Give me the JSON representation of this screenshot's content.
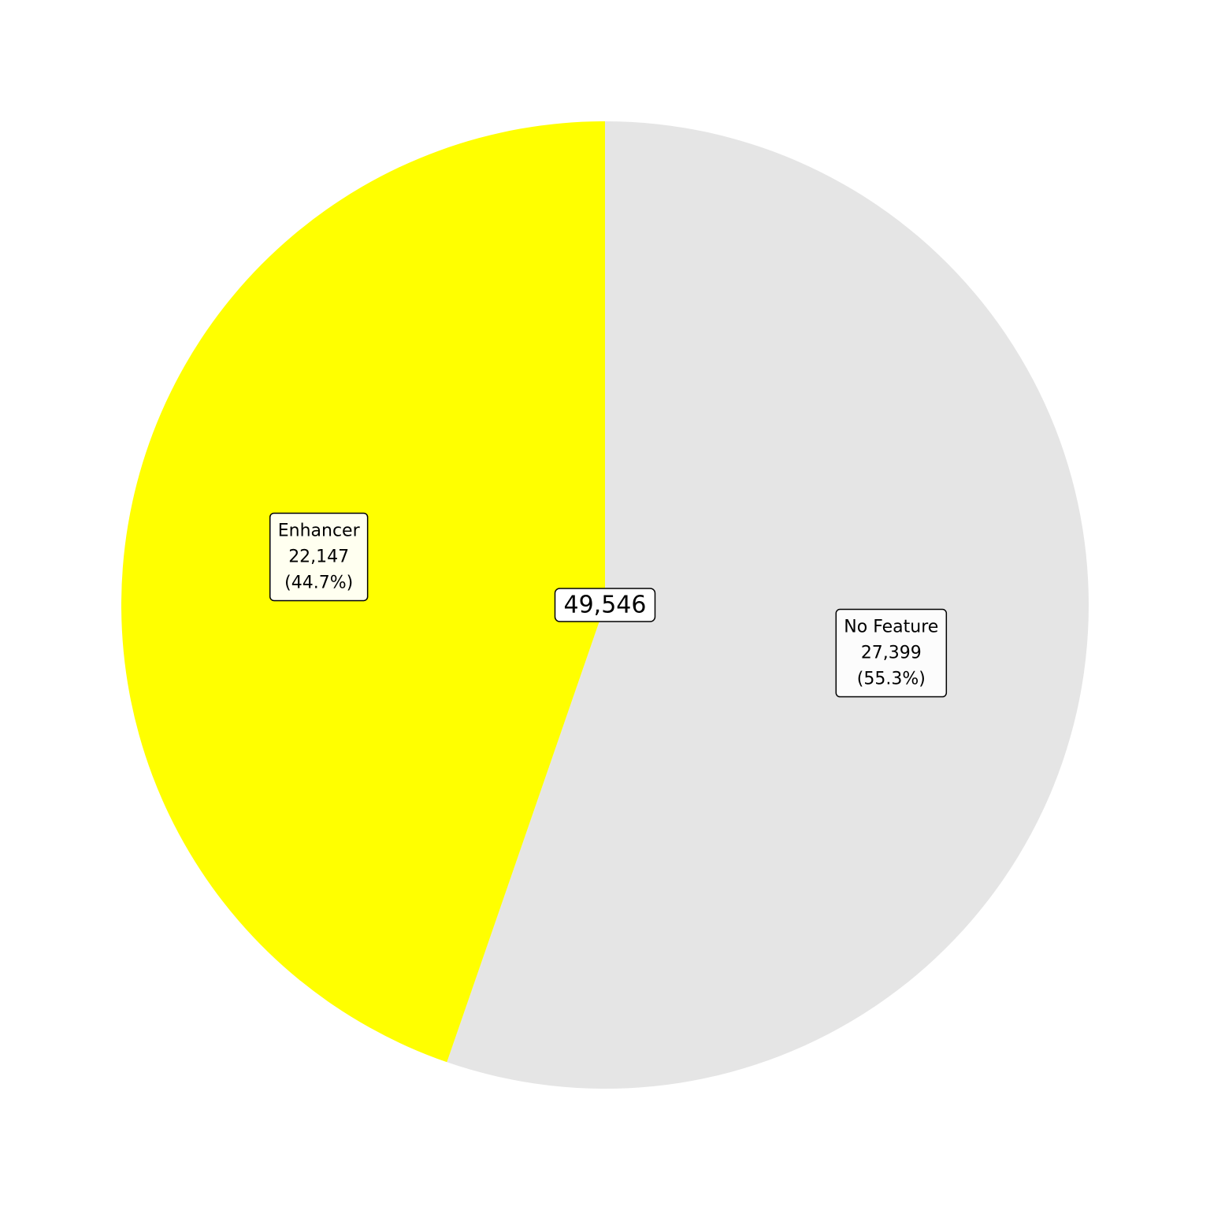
{
  "chart_data": {
    "type": "pie",
    "start_angle": "top",
    "direction": "clockwise",
    "slices": [
      {
        "label": "No Feature",
        "value": 27399,
        "value_label": "27,399",
        "percent_label": "(55.3%)",
        "color": "#e5e5e5",
        "label_box_color": "#fcfcfc"
      },
      {
        "label": "Enhancer",
        "value": 22147,
        "value_label": "22,147",
        "percent_label": "(44.7%)",
        "color": "#ffff00",
        "label_box_color": "#fffff0"
      }
    ],
    "total_label": "49,546",
    "label_box_border": "#000000"
  }
}
